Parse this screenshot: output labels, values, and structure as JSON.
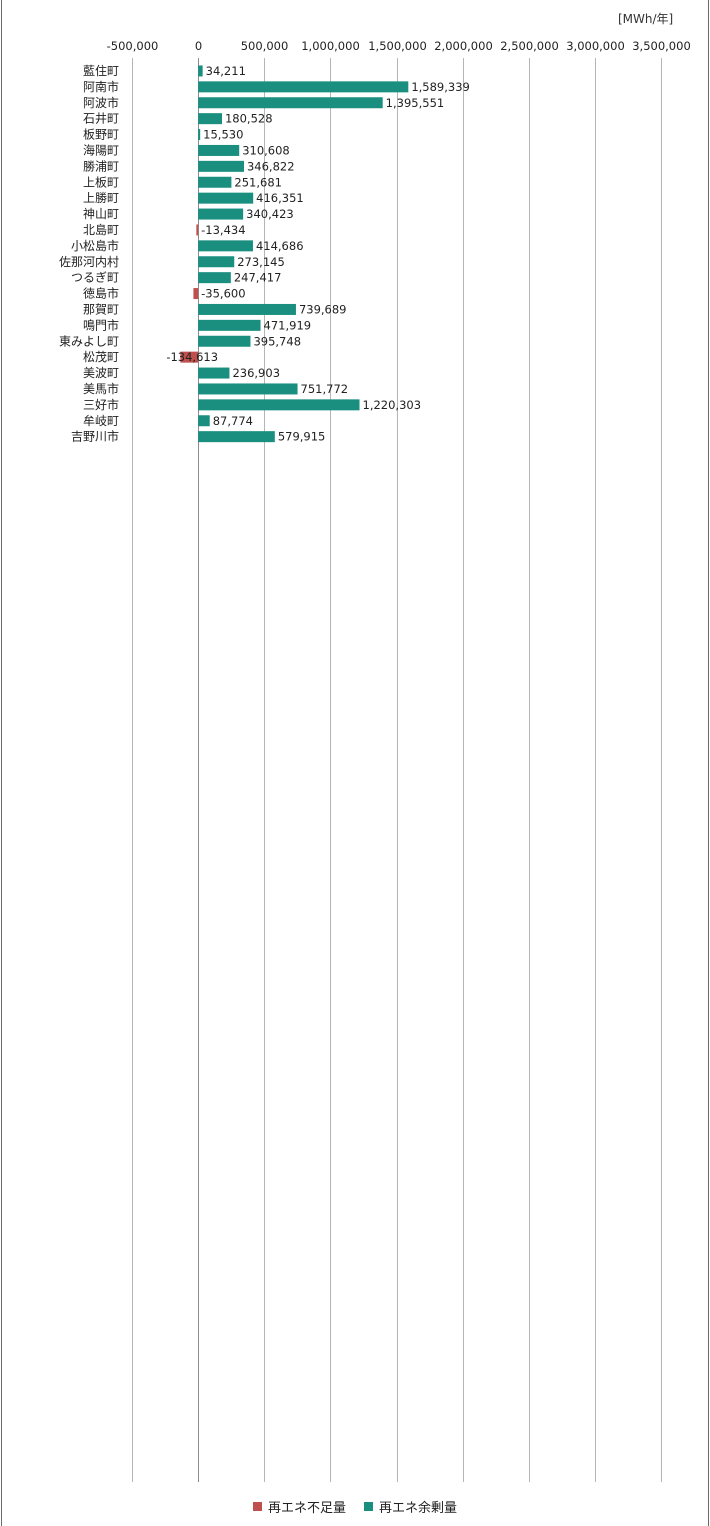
{
  "unit_label": "[MWh/年]",
  "colors": {
    "deficit": "#c0504d",
    "surplus": "#1a8f80",
    "grid": "#b5b5b5",
    "text": "#222222"
  },
  "legend": [
    {
      "label": "再エネ不足量",
      "color": "#c0504d"
    },
    {
      "label": "再エネ余剰量",
      "color": "#1a8f80"
    }
  ],
  "chart_data": {
    "type": "bar",
    "orientation": "horizontal",
    "xlim": [
      -500000,
      3500000
    ],
    "ticks": [
      -500000,
      0,
      500000,
      1000000,
      1500000,
      2000000,
      2500000,
      3000000,
      3500000
    ],
    "tick_labels": [
      "-500,000",
      "0",
      "500,000",
      "1,000,000",
      "1,500,000",
      "2,000,000",
      "2,500,000",
      "3,000,000",
      "3,500,000"
    ],
    "grid": true,
    "legend_position": "bottom",
    "categories": [
      "藍住町",
      "阿南市",
      "阿波市",
      "石井町",
      "板野町",
      "海陽町",
      "勝浦町",
      "上板町",
      "上勝町",
      "神山町",
      "北島町",
      "小松島市",
      "佐那河内村",
      "つるぎ町",
      "徳島市",
      "那賀町",
      "鳴門市",
      "東みよし町",
      "松茂町",
      "美波町",
      "美馬市",
      "三好市",
      "牟岐町",
      "吉野川市"
    ],
    "values": [
      34211,
      1589339,
      1395551,
      180528,
      15530,
      310608,
      346822,
      251681,
      416351,
      340423,
      -13434,
      414686,
      273145,
      247417,
      -35600,
      739689,
      471919,
      395748,
      -134613,
      236903,
      751772,
      1220303,
      87774,
      579915
    ],
    "value_labels": [
      "34,211",
      "1,589,339",
      "1,395,551",
      "180,528",
      "15,530",
      "310,608",
      "346,822",
      "251,681",
      "416,351",
      "340,423",
      "-13,434",
      "414,686",
      "273,145",
      "247,417",
      "-35,600",
      "739,689",
      "471,919",
      "395,748",
      "-134,613",
      "236,903",
      "751,772",
      "1,220,303",
      "87,774",
      "579,915"
    ],
    "series": [
      {
        "name": "再エネ不足量",
        "color": "#c0504d",
        "rule": "negative values"
      },
      {
        "name": "再エネ余剰量",
        "color": "#1a8f80",
        "rule": "positive values"
      }
    ]
  }
}
